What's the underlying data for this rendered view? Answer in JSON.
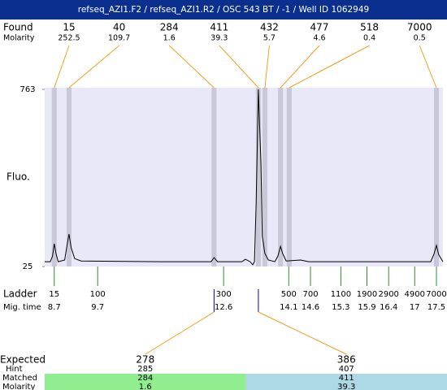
{
  "chart_data": {
    "type": "electropherogram",
    "title": "refseq_AZI1.F2 / refseq_AZI1.R2 / OSC 543 BT / -1 / Well ID 1062949",
    "found_label": "Found",
    "molarity_label": "Molarity",
    "ylabel": "Fluo.",
    "ylim": [
      25,
      763
    ],
    "yticks": [
      25,
      763
    ],
    "xlim": [
      8.48,
      17.65
    ],
    "trace": {
      "color": "#000000",
      "x": [
        8.48,
        8.61,
        8.66,
        8.7,
        8.74,
        8.79,
        8.94,
        9.0,
        9.04,
        9.09,
        9.17,
        9.32,
        11.19,
        12.31,
        12.38,
        12.46,
        13.02,
        13.1,
        13.21,
        13.27,
        13.31,
        13.35,
        13.4,
        13.46,
        13.49,
        13.55,
        13.63,
        13.78,
        13.85,
        13.91,
        13.96,
        14.04,
        14.37,
        14.56,
        17.37,
        17.44,
        17.5,
        17.55,
        17.65
      ],
      "y": [
        45,
        45,
        68,
        120,
        79,
        45,
        52,
        120,
        160,
        103,
        58,
        48,
        45,
        45,
        62,
        45,
        45,
        55,
        45,
        32,
        45,
        289,
        763,
        452,
        153,
        79,
        52,
        45,
        68,
        109,
        79,
        48,
        52,
        45,
        45,
        75,
        113,
        75,
        45
      ]
    },
    "peaks": [
      {
        "size": "15",
        "molarity": "252.5",
        "time": 8.7
      },
      {
        "size": "40",
        "molarity": "109.7",
        "time": 9.04
      },
      {
        "size": "284",
        "molarity": "1.6",
        "time": 12.38
      },
      {
        "size": "411",
        "molarity": "39.3",
        "time": 13.4
      },
      {
        "size": "432",
        "molarity": "5.7",
        "time": 13.55
      },
      {
        "size": "477",
        "molarity": "4.6",
        "time": 13.91
      },
      {
        "size": "518",
        "molarity": "0.4",
        "time": 14.11
      },
      {
        "size": "7000",
        "molarity": "0.5",
        "time": 17.5
      }
    ],
    "ladder_label": "Ladder",
    "migtime_label": "Mig. time",
    "ladder": [
      {
        "size": "15",
        "time": 8.7
      },
      {
        "size": "100",
        "time": 9.7
      },
      {
        "size": "300",
        "time": 12.6
      },
      {
        "size": "500",
        "time": 14.1
      },
      {
        "size": "700",
        "time": 14.6
      },
      {
        "size": "1100",
        "time": 15.3
      },
      {
        "size": "1900",
        "time": 15.9
      },
      {
        "size": "2900",
        "time": 16.4
      },
      {
        "size": "4900",
        "time": 17
      },
      {
        "size": "7000",
        "time": 17.5
      }
    ],
    "expected_label": "Expected",
    "hint_label": "Hint",
    "matched_label": "Matched",
    "expected_molarity_label": "Molarity",
    "expected": [
      {
        "expected": "278",
        "hint": "285",
        "matched": "284",
        "molarity": "1.6",
        "time": 12.38,
        "color": "#90ee90"
      },
      {
        "expected": "386",
        "hint": "407",
        "matched": "411",
        "molarity": "39.3",
        "time": 13.4,
        "color": "#add8e6"
      }
    ]
  }
}
